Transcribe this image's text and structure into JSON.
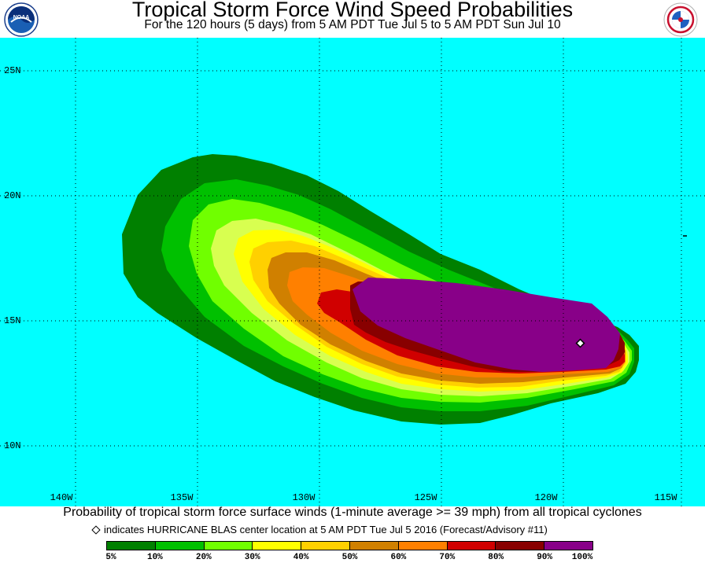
{
  "header": {
    "title": "Tropical Storm Force Wind Speed Probabilities",
    "subtitle": "For the 120 hours (5 days) from 5 AM PDT Tue Jul 5 to 5 AM PDT Sun Jul 10",
    "left_logo": "noaa-logo",
    "right_logo": "national-weather-service-logo"
  },
  "map": {
    "background_color": "#00ffff",
    "lat_labels": [
      "25N",
      "20N",
      "15N",
      "10N"
    ],
    "lon_labels": [
      "140W",
      "135W",
      "130W",
      "125W",
      "120W",
      "115W"
    ],
    "grid": "dotted",
    "storm_center_marker": "diamond"
  },
  "footer": {
    "caption": "Probability of tropical storm force surface winds (1-minute average >= 39 mph) from all tropical cyclones",
    "marker_caption": "indicates HURRICANE BLAS center location at 5 AM PDT Tue Jul 5 2016 (Forecast/Advisory #11)"
  },
  "legend": {
    "labels": [
      "5%",
      "10%",
      "20%",
      "30%",
      "40%",
      "50%",
      "60%",
      "70%",
      "80%",
      "90%",
      "100%"
    ],
    "colors": [
      "#008000",
      "#00c000",
      "#70ff00",
      "#d8ff50",
      "#ffff00",
      "#ffd000",
      "#d08000",
      "#ff8000",
      "#d00000",
      "#880000",
      "#880088"
    ]
  }
}
